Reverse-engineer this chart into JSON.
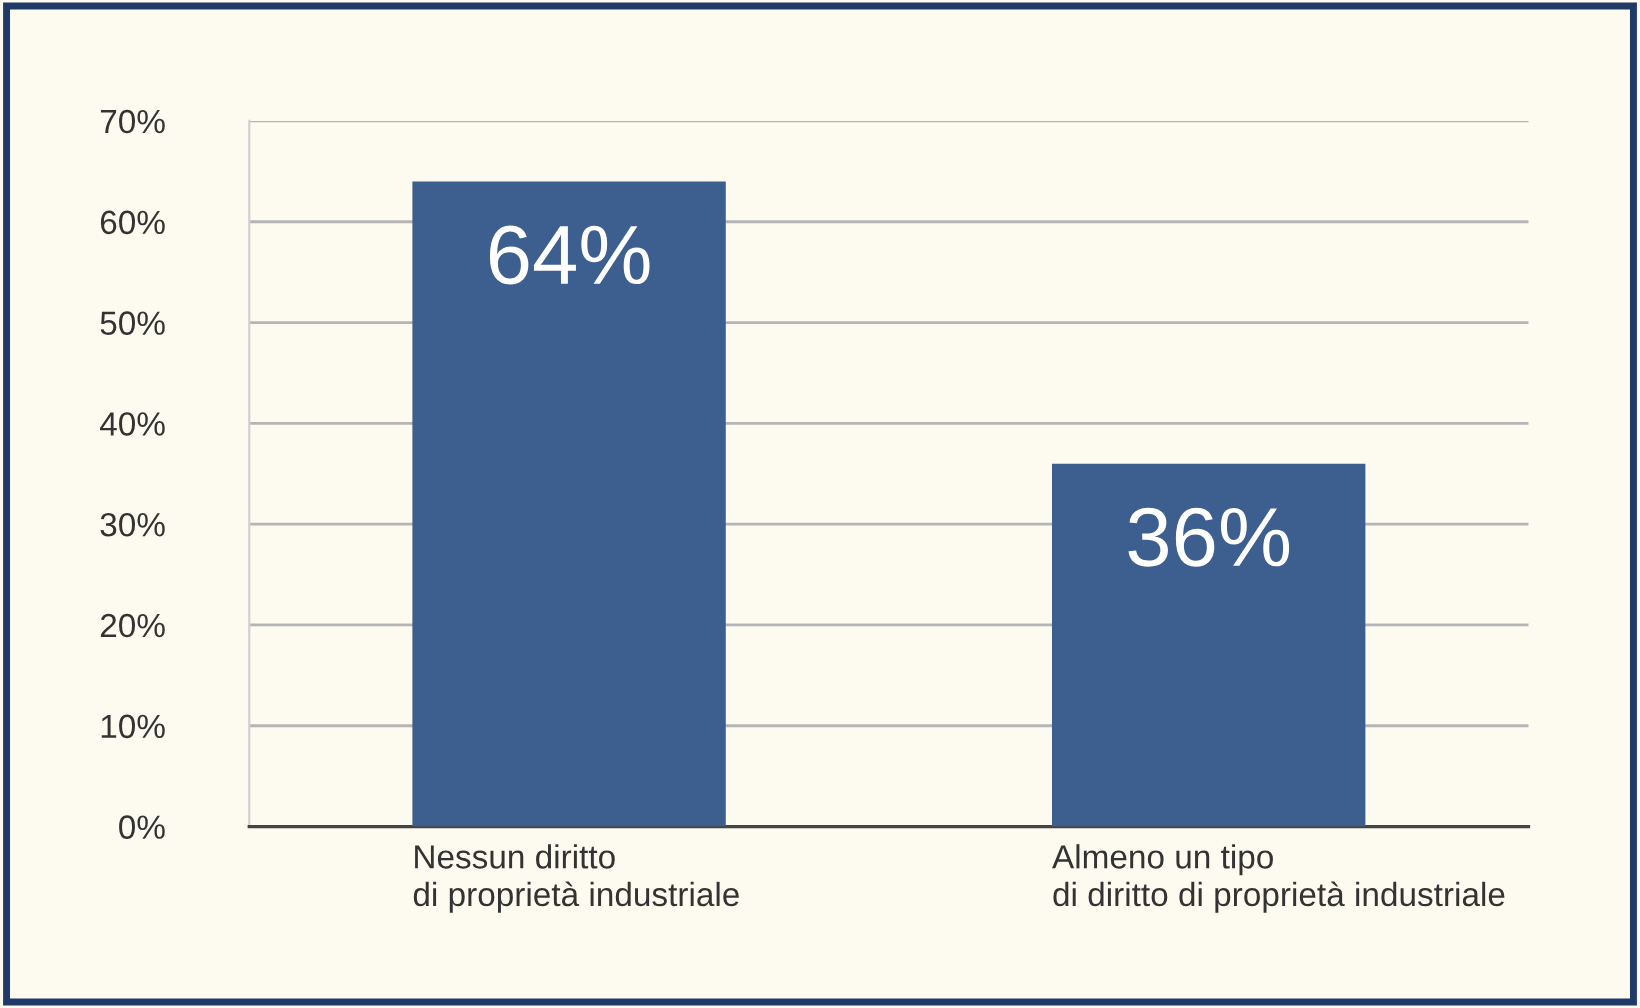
{
  "chart_data": {
    "type": "bar",
    "categories": [
      "Nessun diritto\ndi proprietà industriale",
      "Almeno un tipo\ndi diritto di proprietà industriale"
    ],
    "values": [
      64,
      36
    ],
    "color": "#3d5f8f",
    "value_labels": [
      "64%",
      "36%"
    ],
    "ylim": [
      0,
      70
    ],
    "yticks": [
      {
        "value": 0,
        "label": "0%"
      },
      {
        "value": 10,
        "label": "10%"
      },
      {
        "value": 20,
        "label": "20%"
      },
      {
        "value": 30,
        "label": "30%"
      },
      {
        "value": 40,
        "label": "40%"
      },
      {
        "value": 50,
        "label": "50%"
      },
      {
        "value": 60,
        "label": "60%"
      },
      {
        "value": 70,
        "label": "70%"
      }
    ],
    "grid": "y"
  }
}
